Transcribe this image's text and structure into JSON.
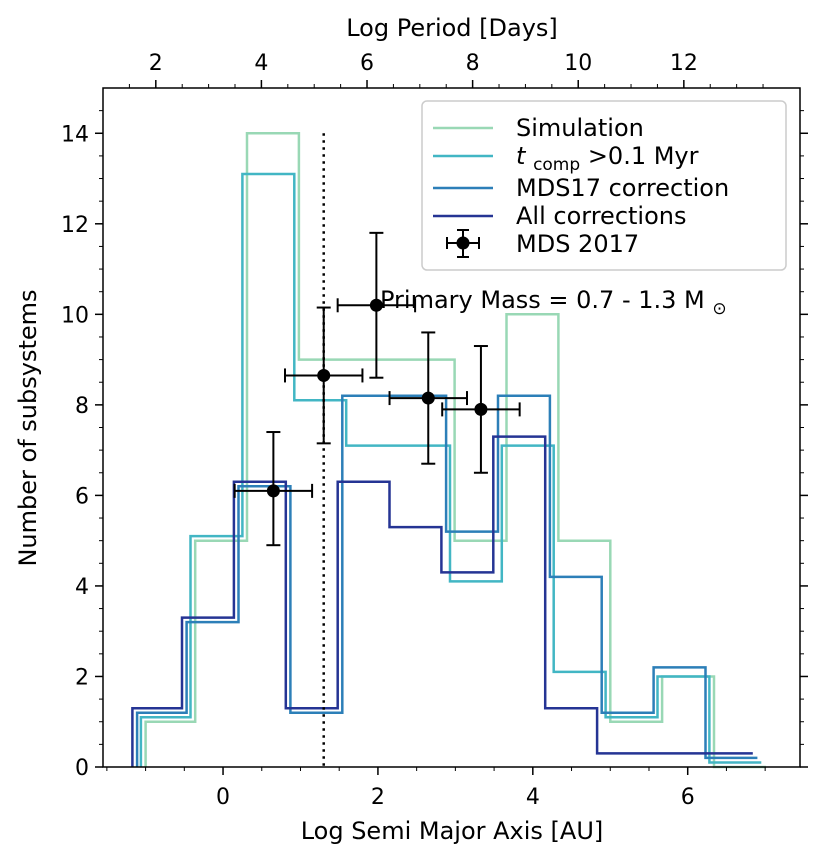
{
  "chart_data": {
    "type": "step-histogram",
    "ylabel": "Number of subsystems",
    "xlabel": "Log Semi Major Axis [AU]",
    "x2label": "Log Period [Days]",
    "xlim": [
      -1.55,
      7.45
    ],
    "ylim": [
      0,
      15
    ],
    "x2lim": [
      1.0,
      14.2
    ],
    "yticks": [
      0,
      2,
      4,
      6,
      8,
      10,
      12,
      14
    ],
    "xticks": [
      0,
      2,
      4,
      6
    ],
    "x2ticks": [
      2,
      4,
      6,
      8,
      10,
      12
    ],
    "annotation": "Primary Mass = 0.7 - 1.3 M",
    "annotation_symbol": "⊙",
    "vline_x": 1.3,
    "legend": {
      "location": "top-right",
      "t_main": "t",
      "t_sub": "comp",
      "t_rest": ">0.1 Myr"
    },
    "series": [
      {
        "name": "Simulation",
        "color": "#99d8b5",
        "edges": [
          -1.0,
          -0.36,
          0.31,
          0.98,
          1.65,
          2.32,
          2.99,
          3.66,
          4.33,
          5.0,
          5.67,
          6.34,
          7.01
        ],
        "values": [
          1,
          5,
          14,
          9,
          9,
          9,
          5,
          10,
          5,
          1,
          2,
          0
        ]
      },
      {
        "name": "t_comp>0.1 Myr",
        "color": "#42b6c4",
        "edges": [
          -1.06,
          -0.42,
          0.25,
          0.92,
          1.59,
          2.26,
          2.93,
          3.6,
          4.27,
          4.94,
          5.61,
          6.28,
          6.95
        ],
        "values": [
          1.1,
          5.1,
          13.1,
          8.1,
          7.1,
          7.1,
          4.1,
          7.1,
          2.1,
          1.1,
          2.0,
          0.1
        ]
      },
      {
        "name": "MDS17 correction",
        "color": "#2c7fb8",
        "edges": [
          -1.11,
          -0.47,
          0.2,
          0.87,
          1.54,
          2.21,
          2.88,
          3.55,
          4.22,
          4.89,
          5.56,
          6.23,
          6.9
        ],
        "values": [
          1.2,
          3.2,
          6.2,
          1.2,
          8.2,
          8.2,
          5.2,
          8.2,
          4.2,
          1.2,
          2.2,
          0.2
        ]
      },
      {
        "name": "All corrections",
        "color": "#253494",
        "edges": [
          -1.17,
          -0.53,
          0.14,
          0.81,
          1.48,
          2.15,
          2.82,
          3.49,
          4.16,
          4.83,
          5.5,
          6.17,
          6.84
        ],
        "values": [
          1.3,
          3.3,
          6.3,
          1.3,
          6.3,
          5.3,
          4.3,
          7.3,
          1.3,
          0.3,
          0.3,
          0.3
        ]
      }
    ],
    "errorbar_series": {
      "name": "MDS 2017",
      "color": "#000000",
      "points": [
        {
          "x": 0.65,
          "y": 6.1,
          "xerr": [
            0.5,
            0.5
          ],
          "yerr": [
            1.2,
            1.3
          ]
        },
        {
          "x": 1.3,
          "y": 8.65,
          "xerr": [
            0.5,
            0.5
          ],
          "yerr": [
            1.5,
            1.5
          ]
        },
        {
          "x": 1.98,
          "y": 10.2,
          "xerr": [
            0.5,
            0.5
          ],
          "yerr": [
            1.6,
            1.6
          ]
        },
        {
          "x": 2.65,
          "y": 8.15,
          "xerr": [
            0.5,
            0.5
          ],
          "yerr": [
            1.45,
            1.45
          ]
        },
        {
          "x": 3.33,
          "y": 7.9,
          "xerr": [
            0.5,
            0.5
          ],
          "yerr": [
            1.4,
            1.4
          ]
        }
      ]
    }
  }
}
